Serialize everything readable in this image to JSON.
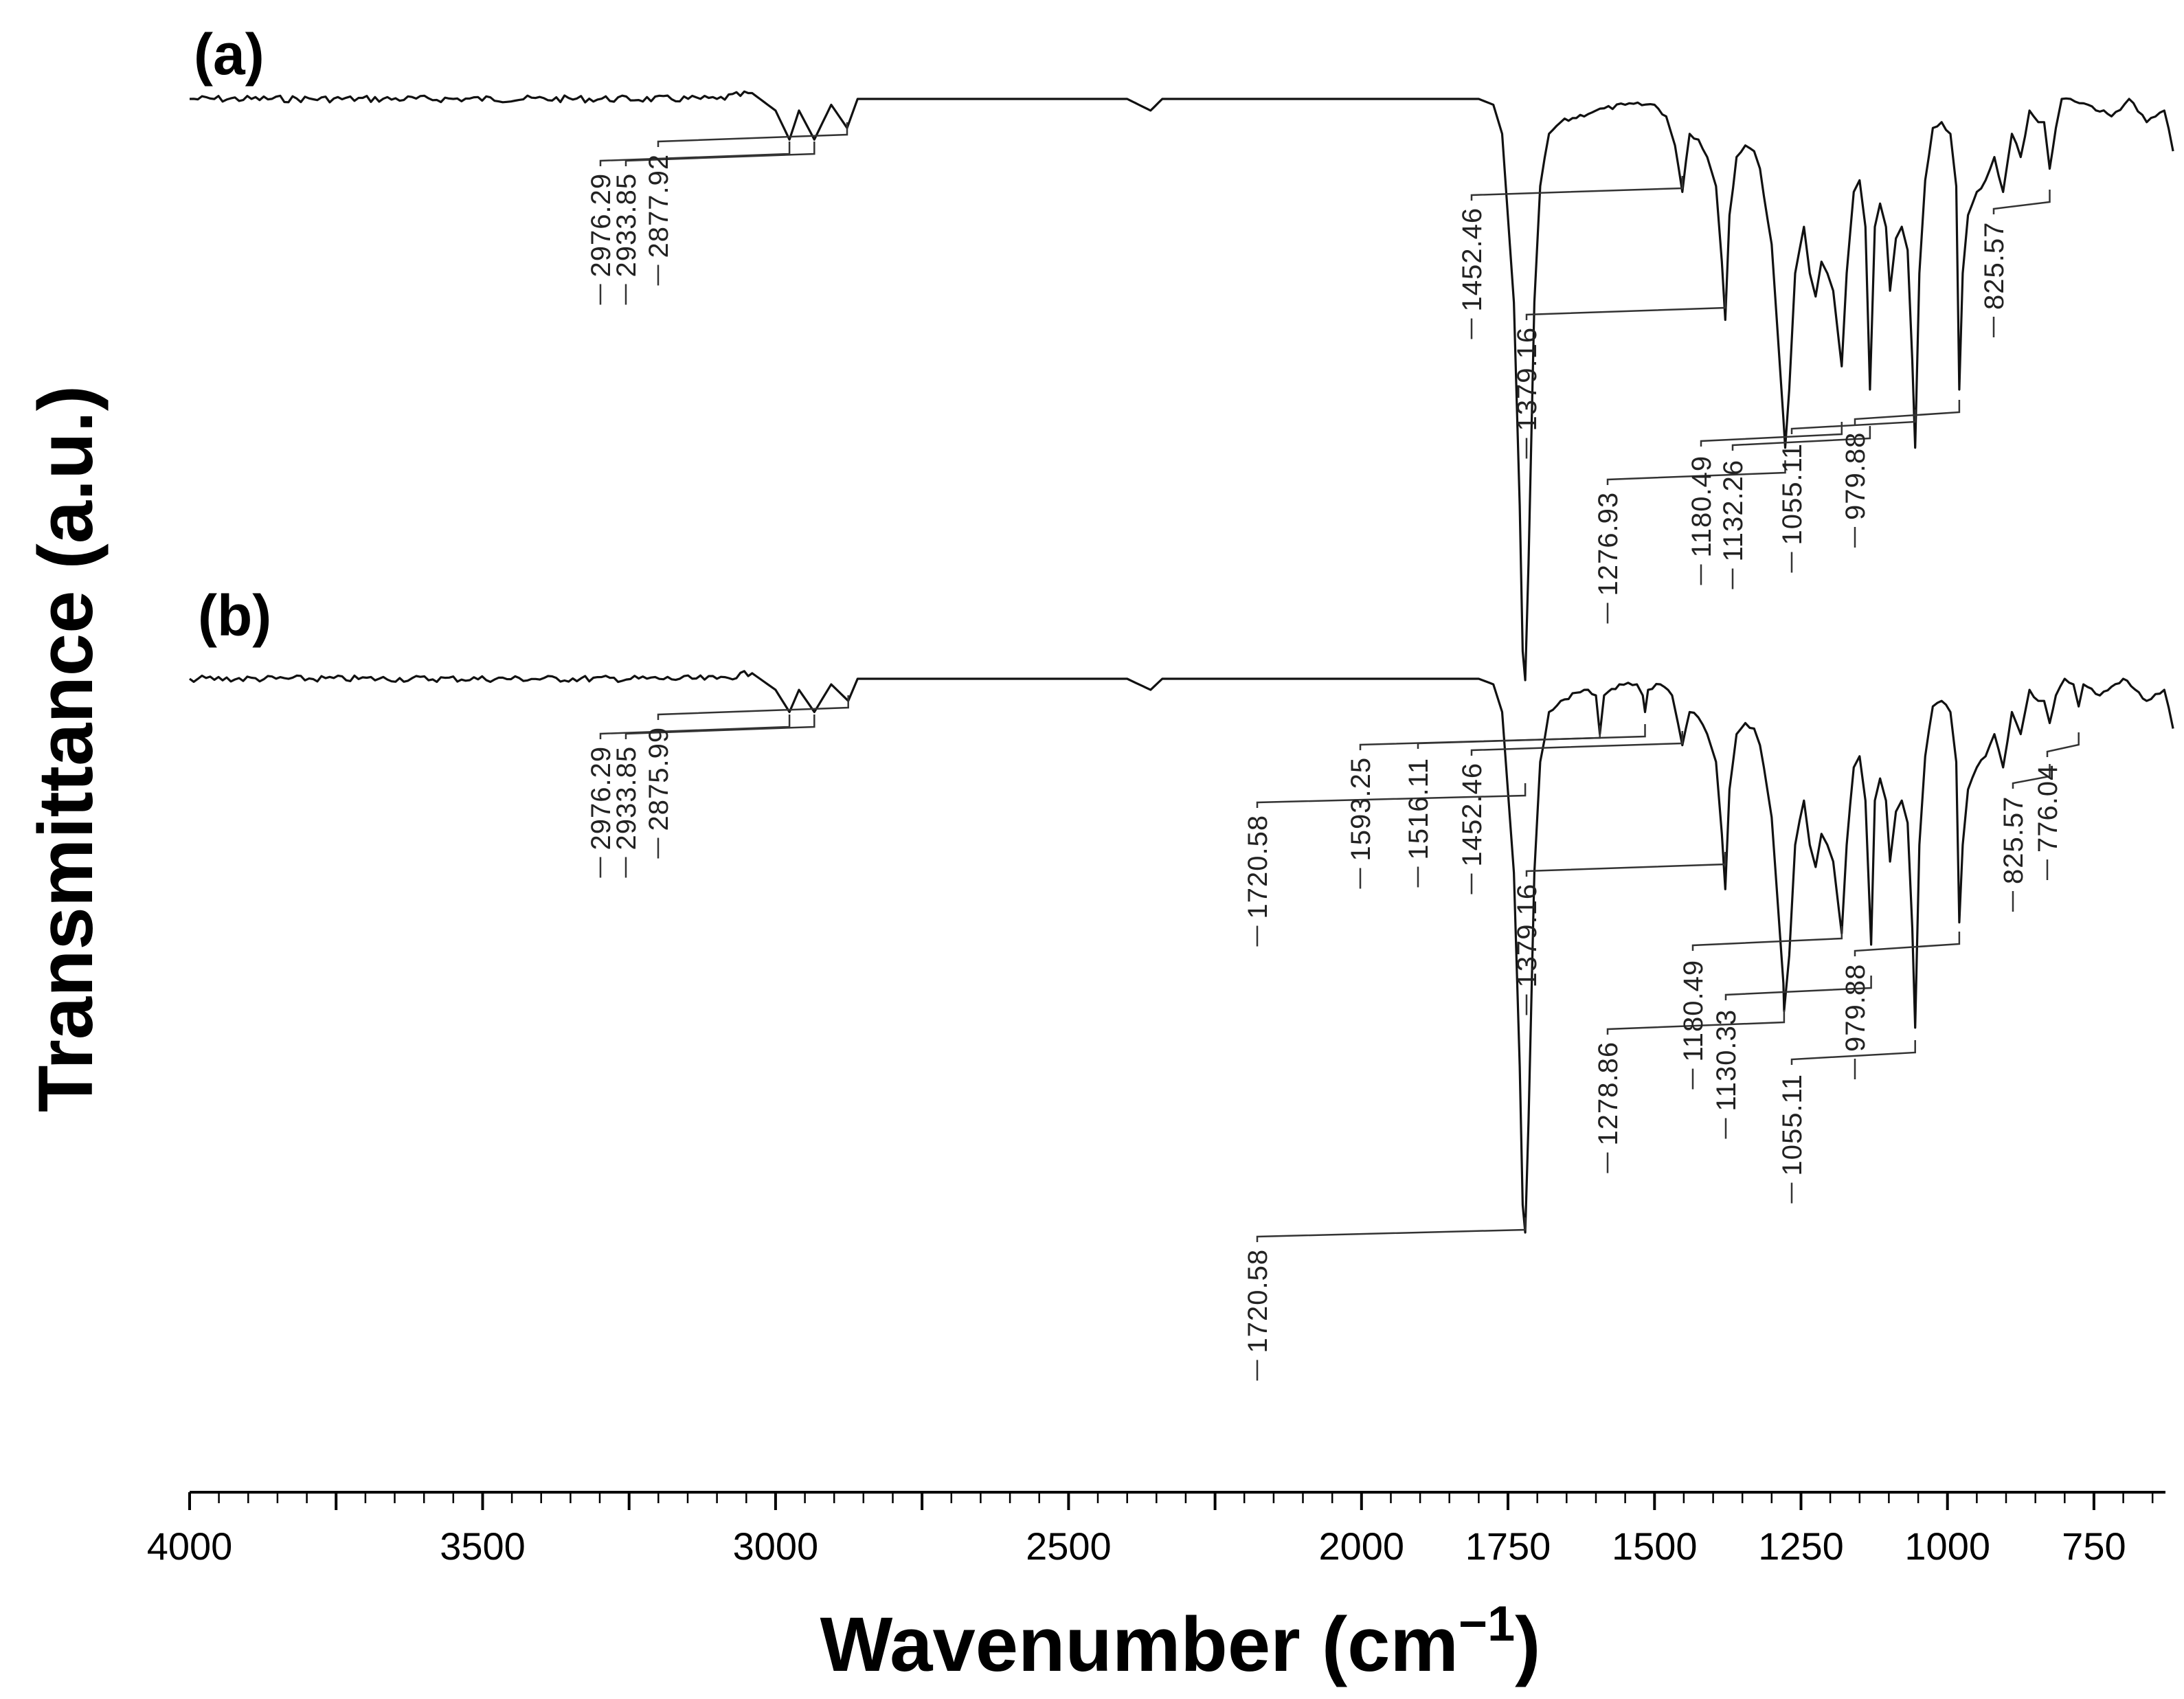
{
  "chart_data": {
    "type": "line",
    "title": "",
    "xlabel": "Wavenumber (cm⁻¹)",
    "xlabel_main": "Wavenumber (cm",
    "xlabel_sup": "−1",
    "xlabel_close": ")",
    "ylabel": "Transmittance (a.u.)",
    "xlim": [
      4000,
      600
    ],
    "x_reversed": true,
    "grid": false,
    "xticks": [
      4000,
      3500,
      3000,
      2500,
      2000,
      1750,
      1500,
      1250,
      1000,
      750
    ],
    "xtick_labels": [
      "4000",
      "3500",
      "3000",
      "2500",
      "2000",
      "1750",
      "1500",
      "1250",
      "1000",
      "750"
    ],
    "series": [
      {
        "name": "(a)",
        "x": [
          4000,
          3100,
          3040,
          3000,
          2976.29,
          2960,
          2933.85,
          2905,
          2877.92,
          2860,
          2600,
          2400,
          2360,
          2340,
          2200,
          2000,
          1800,
          1775,
          1760,
          1740,
          1730,
          1725,
          1720.58,
          1715,
          1705,
          1695,
          1680,
          1660,
          1600,
          1550,
          1500,
          1480,
          1465,
          1452.46,
          1440,
          1425,
          1410,
          1395,
          1385,
          1379.16,
          1372,
          1360,
          1345,
          1330,
          1320,
          1300,
          1290,
          1280,
          1276.93,
          1270,
          1260,
          1245,
          1235,
          1225,
          1215,
          1205,
          1195,
          1185,
          1180.49,
          1172,
          1160,
          1150,
          1140,
          1132.26,
          1124,
          1115,
          1105,
          1098,
          1088,
          1078,
          1068,
          1060,
          1055.11,
          1048,
          1038,
          1025,
          1010,
          995,
          985,
          979.88,
          974,
          965,
          950,
          935,
          920,
          905,
          890,
          875,
          860,
          845,
          835,
          825.57,
          815,
          805,
          790,
          760,
          720,
          690,
          660,
          630,
          615
        ],
        "y": [
          0.0,
          0.0,
          -0.01,
          0.02,
          0.07,
          0.02,
          0.07,
          0.01,
          0.05,
          0.0,
          0.0,
          0.0,
          0.02,
          0.0,
          0.0,
          0.0,
          0.0,
          0.01,
          0.06,
          0.35,
          0.7,
          0.95,
          1.0,
          0.8,
          0.35,
          0.15,
          0.06,
          0.04,
          0.02,
          0.01,
          0.01,
          0.03,
          0.08,
          0.16,
          0.06,
          0.07,
          0.1,
          0.15,
          0.28,
          0.38,
          0.2,
          0.1,
          0.08,
          0.09,
          0.12,
          0.25,
          0.4,
          0.55,
          0.6,
          0.5,
          0.3,
          0.22,
          0.3,
          0.34,
          0.28,
          0.3,
          0.33,
          0.42,
          0.46,
          0.3,
          0.16,
          0.14,
          0.22,
          0.5,
          0.22,
          0.18,
          0.22,
          0.33,
          0.24,
          0.22,
          0.26,
          0.45,
          0.6,
          0.3,
          0.14,
          0.05,
          0.04,
          0.06,
          0.15,
          0.5,
          0.3,
          0.2,
          0.16,
          0.14,
          0.1,
          0.16,
          0.06,
          0.1,
          0.02,
          0.04,
          0.04,
          0.12,
          0.05,
          0.0,
          0.0,
          0.01,
          0.03,
          0.0,
          0.04,
          0.02,
          0.09
        ]
      },
      {
        "name": "(b)",
        "x": [
          4000,
          3100,
          3040,
          3000,
          2976.29,
          2960,
          2933.85,
          2905,
          2875.99,
          2860,
          2600,
          2400,
          2360,
          2340,
          2200,
          2000,
          1800,
          1775,
          1760,
          1740,
          1730,
          1725,
          1720.58,
          1715,
          1705,
          1695,
          1680,
          1660,
          1620,
          1600,
          1593.25,
          1586,
          1560,
          1530,
          1520,
          1516.11,
          1511,
          1490,
          1470,
          1460,
          1452.46,
          1440,
          1425,
          1410,
          1395,
          1385,
          1379.16,
          1372,
          1360,
          1345,
          1330,
          1320,
          1300,
          1290,
          1280,
          1278.86,
          1270,
          1260,
          1245,
          1235,
          1225,
          1215,
          1205,
          1195,
          1185,
          1180.49,
          1172,
          1160,
          1150,
          1140,
          1130.33,
          1124,
          1115,
          1105,
          1098,
          1088,
          1078,
          1068,
          1060,
          1055.11,
          1048,
          1038,
          1025,
          1010,
          995,
          985,
          979.88,
          974,
          965,
          950,
          935,
          920,
          905,
          890,
          875,
          860,
          845,
          835,
          825.57,
          815,
          800,
          785,
          776.04,
          768,
          740,
          700,
          660,
          630,
          615
        ],
        "y": [
          0.0,
          0.0,
          -0.01,
          0.02,
          0.06,
          0.02,
          0.06,
          0.01,
          0.04,
          0.0,
          0.0,
          0.0,
          0.02,
          0.0,
          0.0,
          0.0,
          0.0,
          0.01,
          0.06,
          0.35,
          0.7,
          0.95,
          1.0,
          0.8,
          0.35,
          0.15,
          0.06,
          0.04,
          0.02,
          0.03,
          0.1,
          0.03,
          0.01,
          0.01,
          0.03,
          0.06,
          0.02,
          0.01,
          0.03,
          0.08,
          0.12,
          0.06,
          0.07,
          0.1,
          0.15,
          0.28,
          0.38,
          0.2,
          0.1,
          0.08,
          0.09,
          0.12,
          0.25,
          0.4,
          0.55,
          0.6,
          0.5,
          0.3,
          0.22,
          0.3,
          0.34,
          0.28,
          0.3,
          0.33,
          0.42,
          0.46,
          0.3,
          0.16,
          0.14,
          0.22,
          0.48,
          0.22,
          0.18,
          0.22,
          0.33,
          0.24,
          0.22,
          0.26,
          0.45,
          0.63,
          0.3,
          0.14,
          0.05,
          0.04,
          0.06,
          0.15,
          0.44,
          0.3,
          0.2,
          0.16,
          0.14,
          0.1,
          0.16,
          0.06,
          0.1,
          0.02,
          0.04,
          0.04,
          0.08,
          0.03,
          0.0,
          0.01,
          0.05,
          0.01,
          0.03,
          0.0,
          0.04,
          0.02,
          0.09
        ]
      }
    ],
    "annotations": [
      {
        "series": "(a)",
        "peaks": [
          "2976.29",
          "2933.85",
          "2877.92",
          "1452.46",
          "1379.16",
          "1276.93",
          "1180.49",
          "1132.26",
          "1055.11",
          "979.88",
          "825.57"
        ]
      },
      {
        "series": "(b)",
        "peaks": [
          "2976.29",
          "2933.85",
          "2875.99",
          "1720.58",
          "1593.25",
          "1516.11",
          "1452.46",
          "1379.16",
          "1278.86",
          "1180.49",
          "1130.33",
          "1055.11",
          "979.88",
          "825.57",
          "776.04",
          "1720.58"
        ]
      }
    ]
  }
}
